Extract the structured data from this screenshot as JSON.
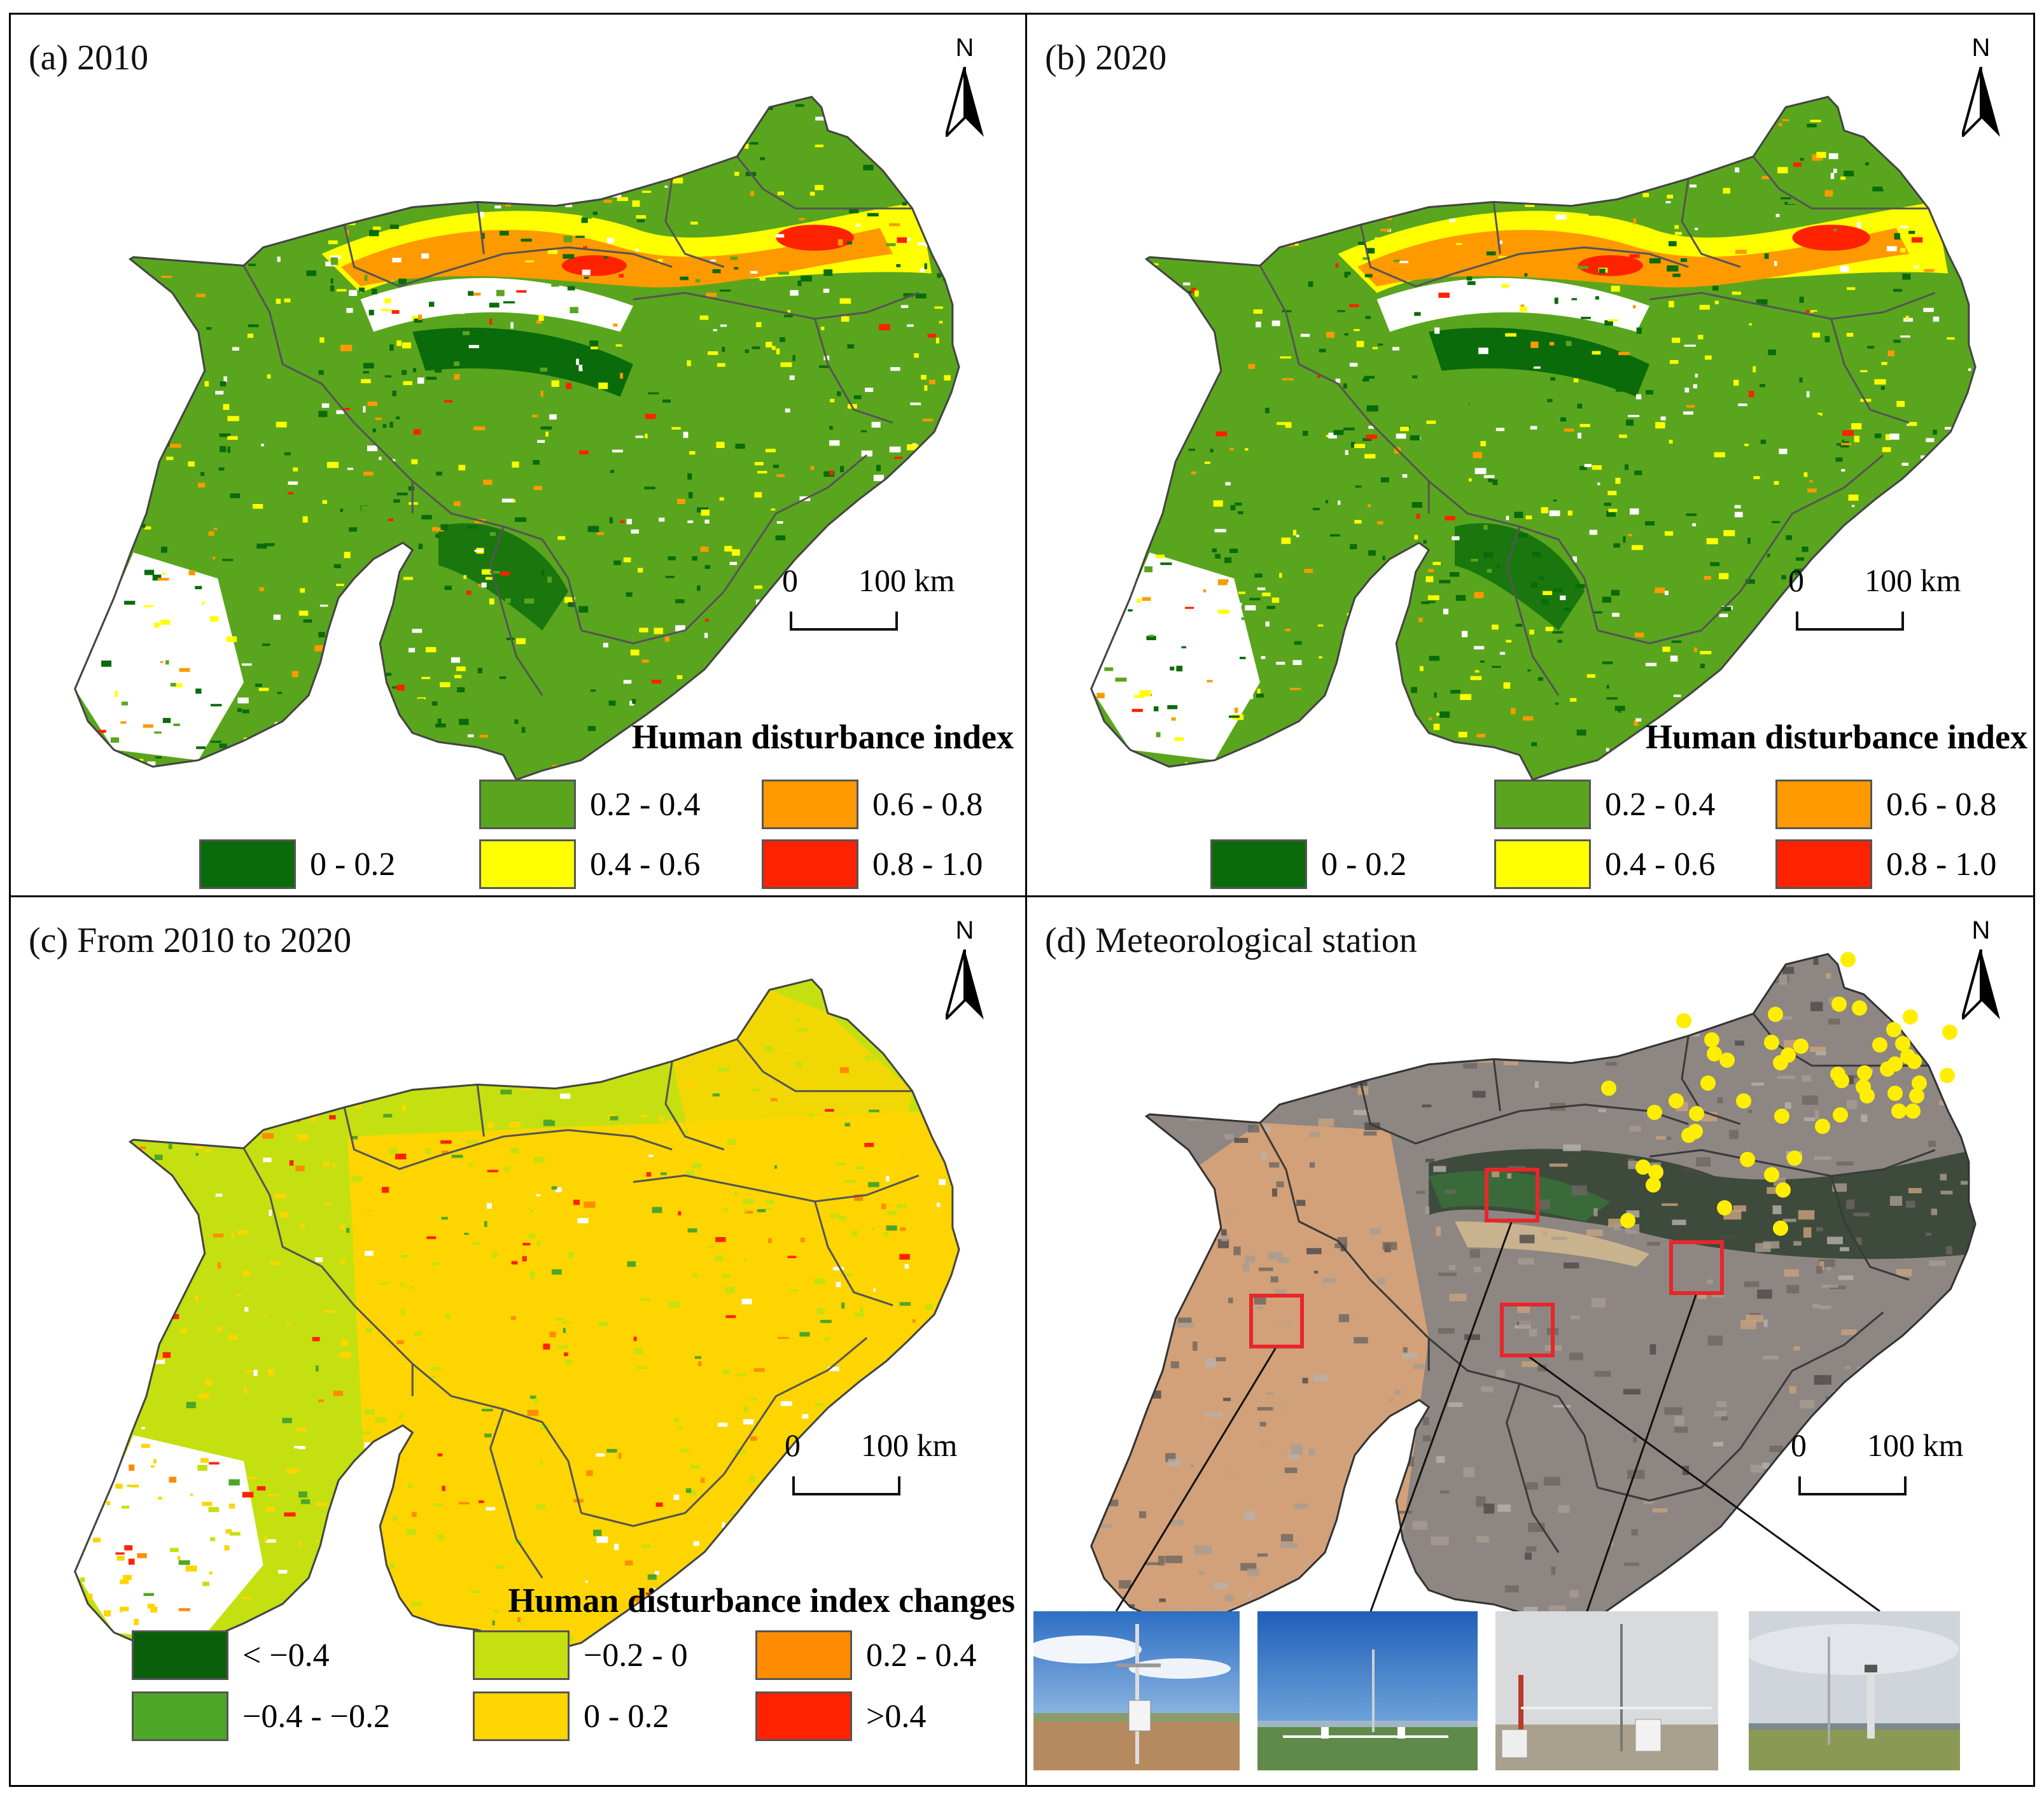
{
  "panels": {
    "a": {
      "title": "(a) 2010",
      "north": "N",
      "scale": {
        "start": "0",
        "end": "100 km"
      },
      "legend_title": "Human disturbance index",
      "legend": [
        {
          "label": "0 - 0.2",
          "color": "#0a6b0a"
        },
        {
          "label": "0.2 - 0.4",
          "color": "#5aa51e"
        },
        {
          "label": "0.4 - 0.6",
          "color": "#ffff00"
        },
        {
          "label": "0.6 - 0.8",
          "color": "#ff9900"
        },
        {
          "label": "0.8 - 1.0",
          "color": "#ff2200"
        }
      ]
    },
    "b": {
      "title": "(b)  2020",
      "north": "N",
      "scale": {
        "start": "0",
        "end": "100 km"
      },
      "legend_title": "Human disturbance index",
      "legend": [
        {
          "label": "0 - 0.2",
          "color": "#0a6b0a"
        },
        {
          "label": "0.2 - 0.4",
          "color": "#5aa51e"
        },
        {
          "label": "0.4 - 0.6",
          "color": "#ffff00"
        },
        {
          "label": "0.6 - 0.8",
          "color": "#ff9900"
        },
        {
          "label": "0.8 - 1.0",
          "color": "#ff2200"
        }
      ]
    },
    "c": {
      "title": "(c) From 2010 to 2020",
      "north": "N",
      "scale": {
        "start": "0",
        "end": "100 km"
      },
      "legend_title": "Human disturbance index changes",
      "legend": [
        {
          "label": "< −0.4",
          "color": "#0a5f0a"
        },
        {
          "label": "−0.4 - −0.2",
          "color": "#4ea629"
        },
        {
          "label": "−0.2 - 0",
          "color": "#c5e010"
        },
        {
          "label": "0 - 0.2",
          "color": "#ffd500"
        },
        {
          "label": "0.2 - 0.4",
          "color": "#ff8c00"
        },
        {
          "label": ">0.4",
          "color": "#ff2200"
        }
      ]
    },
    "d": {
      "title": "(d) Meteorological station",
      "north": "N",
      "scale": {
        "start": "0",
        "end": "100 km"
      },
      "station_color": "#ffee00",
      "highlight_color": "#e8262a"
    }
  }
}
